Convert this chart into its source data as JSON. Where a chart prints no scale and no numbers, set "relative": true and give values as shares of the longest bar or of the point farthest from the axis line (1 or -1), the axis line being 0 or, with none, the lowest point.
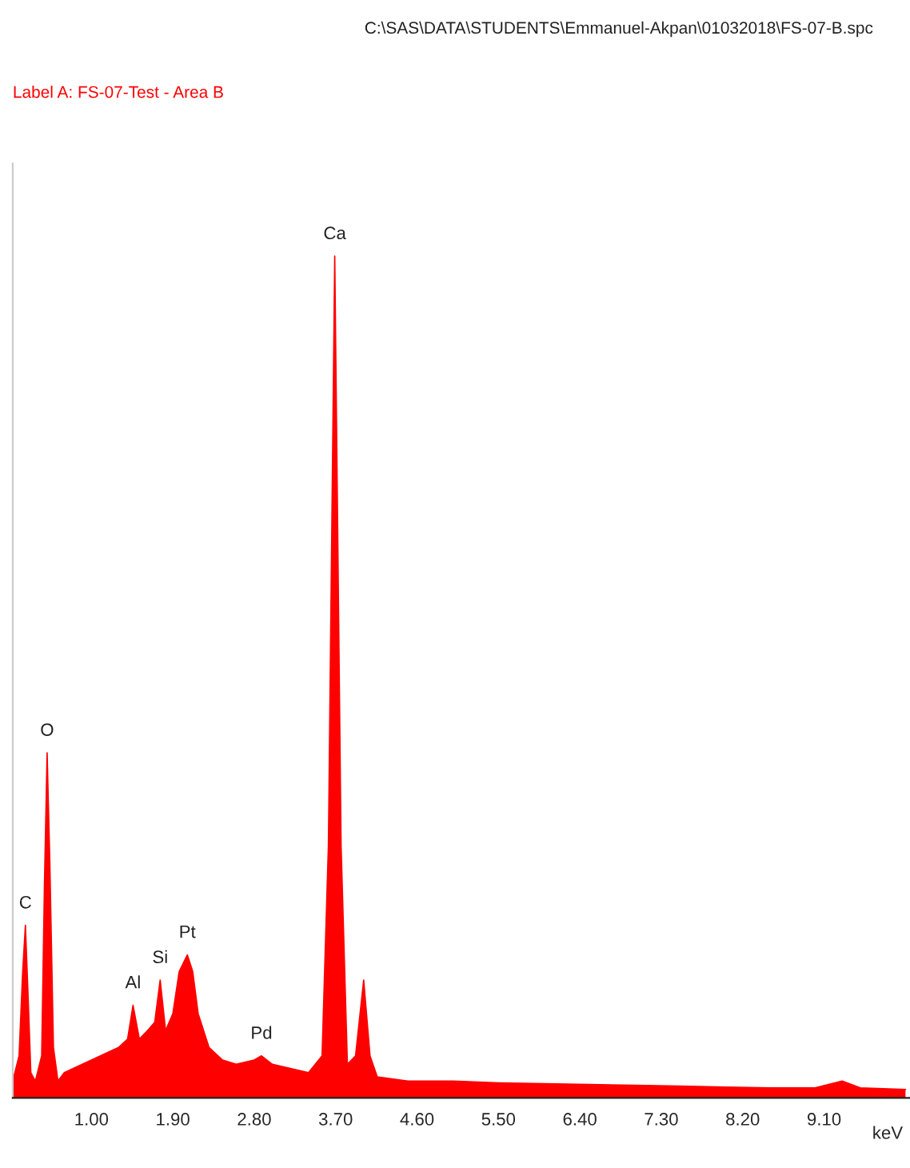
{
  "chart_data": {
    "type": "area",
    "relative": true,
    "title": "C:\\SAS\\DATA\\STUDENTS\\Emmanuel-Akpan\\01032018\\FS-07-B.spc",
    "subtitle": "Label A: FS-07-Test - Area B",
    "xlabel": "keV",
    "x": [
      0.13,
      0.2,
      0.24,
      0.27,
      0.3,
      0.33,
      0.38,
      0.45,
      0.48,
      0.51,
      0.54,
      0.58,
      0.63,
      0.7,
      0.8,
      0.9,
      1.0,
      1.1,
      1.2,
      1.3,
      1.4,
      1.46,
      1.53,
      1.62,
      1.7,
      1.76,
      1.82,
      1.9,
      1.97,
      2.06,
      2.12,
      2.18,
      2.3,
      2.45,
      2.6,
      2.8,
      2.88,
      3.0,
      3.2,
      3.4,
      3.55,
      3.62,
      3.69,
      3.76,
      3.83,
      3.92,
      4.01,
      4.08,
      4.16,
      4.5,
      5.0,
      5.5,
      6.0,
      6.5,
      7.0,
      7.5,
      8.0,
      8.5,
      9.0,
      9.3,
      9.5,
      10.0
    ],
    "series": [
      {
        "color": "#ff0000",
        "values": [
          0.02,
          0.05,
          0.15,
          0.205,
          0.12,
          0.03,
          0.02,
          0.05,
          0.25,
          0.41,
          0.28,
          0.06,
          0.02,
          0.03,
          0.035,
          0.04,
          0.045,
          0.05,
          0.055,
          0.06,
          0.07,
          0.11,
          0.07,
          0.08,
          0.09,
          0.14,
          0.08,
          0.1,
          0.15,
          0.17,
          0.15,
          0.1,
          0.06,
          0.045,
          0.04,
          0.045,
          0.05,
          0.04,
          0.035,
          0.03,
          0.05,
          0.3,
          1.0,
          0.3,
          0.04,
          0.05,
          0.14,
          0.05,
          0.025,
          0.02,
          0.02,
          0.018,
          0.017,
          0.016,
          0.015,
          0.014,
          0.013,
          0.012,
          0.012,
          0.02,
          0.012,
          0.01
        ]
      }
    ],
    "xlim": [
      0.13,
      10.05
    ],
    "xticks": [
      {
        "value": 1.0,
        "label": "1.00"
      },
      {
        "value": 1.9,
        "label": "1.90"
      },
      {
        "value": 2.8,
        "label": "2.80"
      },
      {
        "value": 3.7,
        "label": "3.70"
      },
      {
        "value": 4.6,
        "label": "4.60"
      },
      {
        "value": 5.5,
        "label": "5.50"
      },
      {
        "value": 6.4,
        "label": "6.40"
      },
      {
        "value": 7.3,
        "label": "7.30"
      },
      {
        "value": 8.2,
        "label": "8.20"
      },
      {
        "value": 9.1,
        "label": "9.10"
      }
    ],
    "annotations": [
      {
        "text": "C",
        "x": 0.27,
        "y": 0.205
      },
      {
        "text": "O",
        "x": 0.51,
        "y": 0.41
      },
      {
        "text": "Al",
        "x": 1.46,
        "y": 0.11
      },
      {
        "text": "Si",
        "x": 1.76,
        "y": 0.14
      },
      {
        "text": "Pt",
        "x": 2.06,
        "y": 0.17
      },
      {
        "text": "Pd",
        "x": 2.88,
        "y": 0.05
      },
      {
        "text": "Ca",
        "x": 3.69,
        "y": 1.0
      }
    ]
  }
}
